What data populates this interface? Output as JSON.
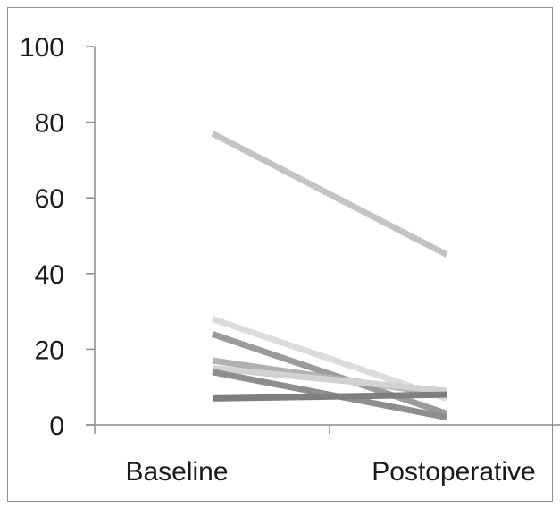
{
  "chart_data": {
    "type": "line",
    "title": "",
    "xlabel": "",
    "ylabel": "",
    "categories": [
      "Baseline",
      "Postoperative"
    ],
    "ylim": [
      0,
      100
    ],
    "yticks": [
      0,
      20,
      40,
      60,
      80,
      100
    ],
    "grid": false,
    "legend": "none",
    "series": [
      {
        "values": [
          77,
          45
        ],
        "color": "#c4c4c4"
      },
      {
        "values": [
          28,
          7
        ],
        "color": "#dcdcdc"
      },
      {
        "values": [
          24,
          3
        ],
        "color": "#9b9b9b"
      },
      {
        "values": [
          17,
          8
        ],
        "color": "#b1b1b1"
      },
      {
        "values": [
          15,
          9
        ],
        "color": "#d2d2d2"
      },
      {
        "values": [
          14,
          2
        ],
        "color": "#8e8e8e"
      },
      {
        "values": [
          7,
          8
        ],
        "color": "#7f7f7f"
      }
    ]
  }
}
